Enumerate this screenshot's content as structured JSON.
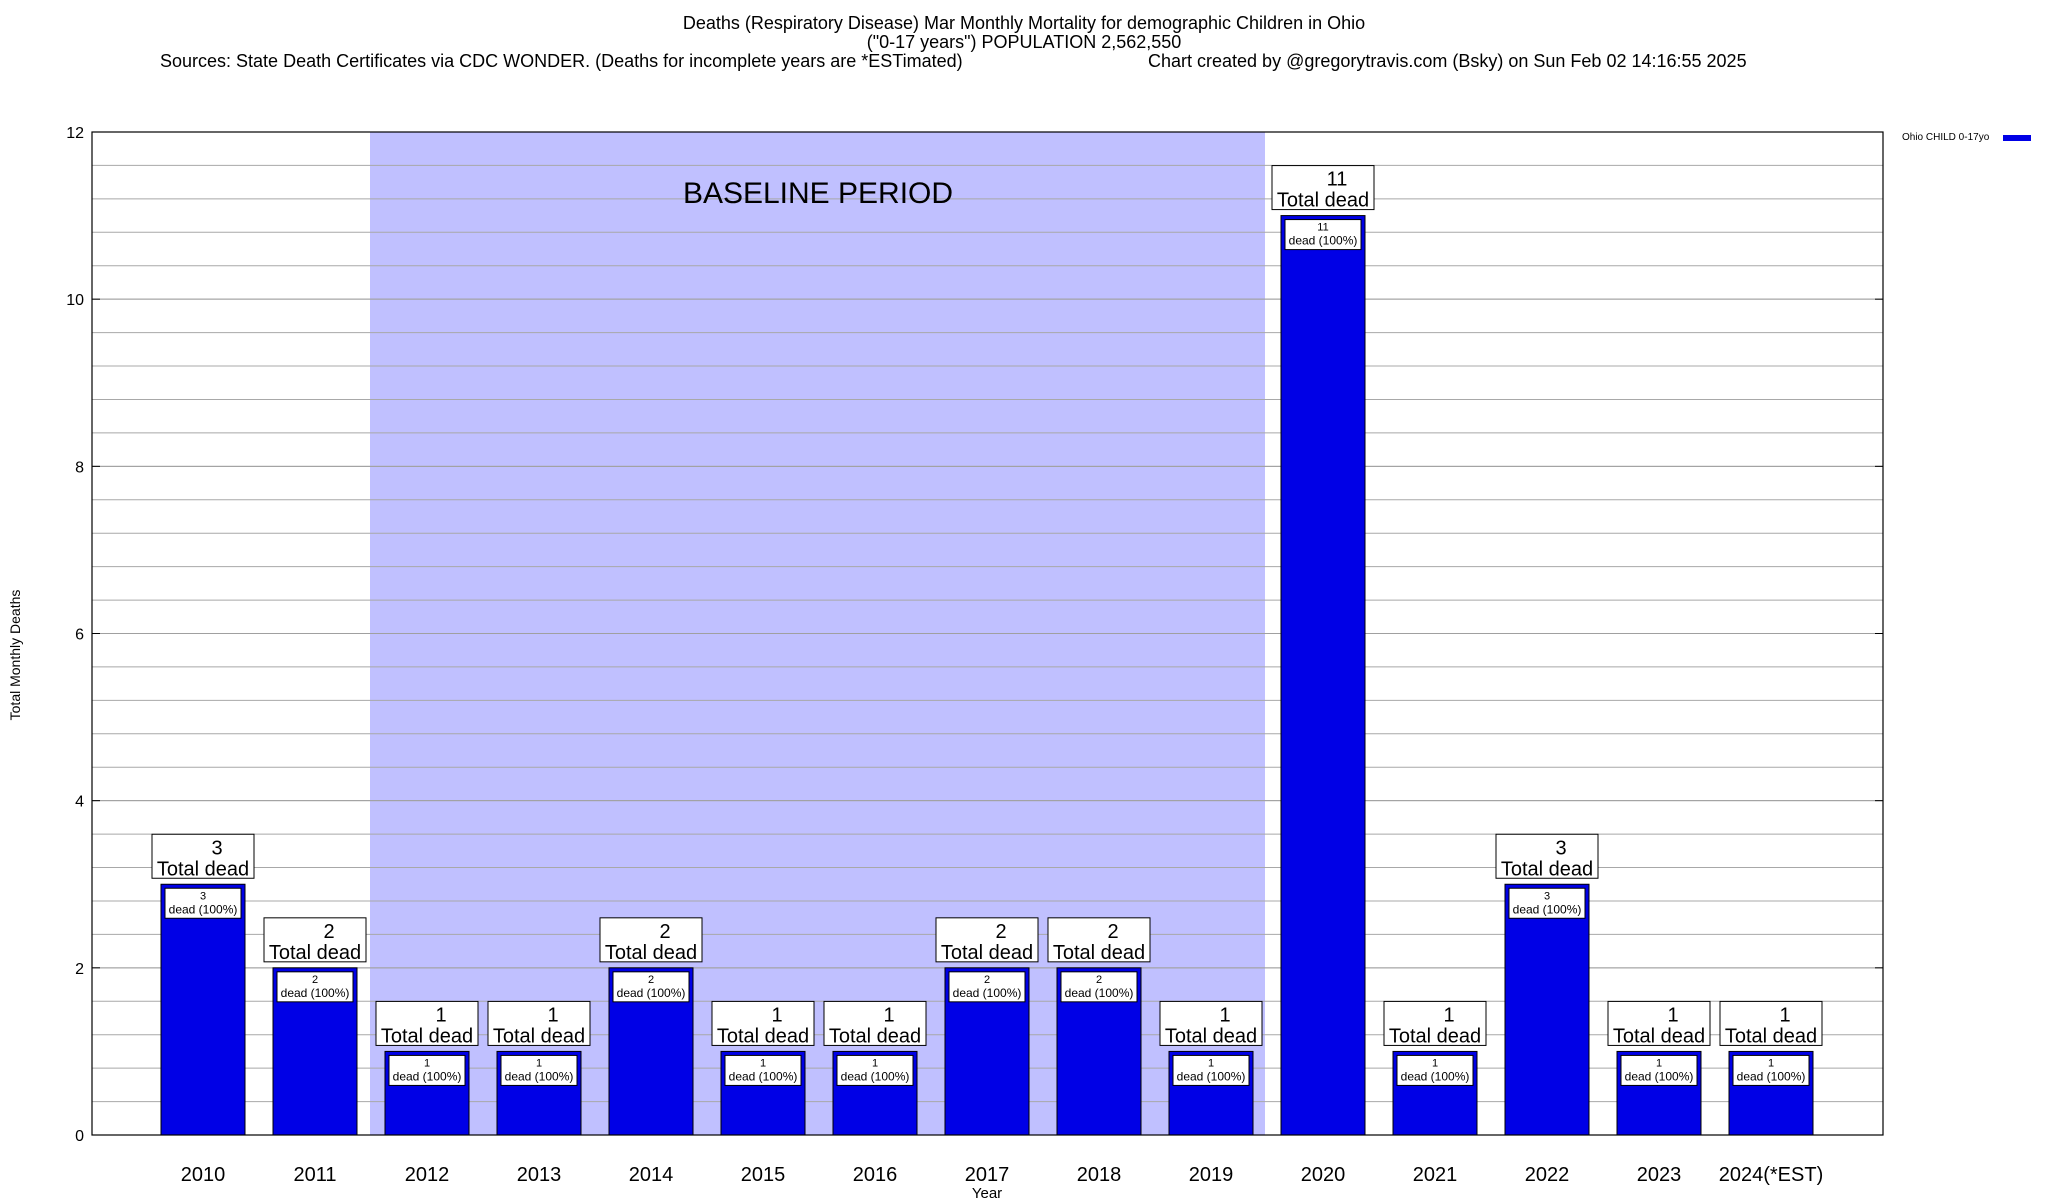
{
  "chart_data": {
    "type": "bar",
    "title_lines": [
      "Deaths (Respiratory Disease) Mar Monthly Mortality for demographic Children in Ohio",
      "(\"0-17 years\") POPULATION 2,562,550",
      "Sources: State Death Certificates via CDC WONDER. (Deaths for incomplete years are *ESTimated)"
    ],
    "credit": "Chart created by @gregorytravis.com (Bsky) on Sun Feb 02 14:16:55 2025",
    "xlabel": "Year",
    "ylabel": "Total Monthly Deaths",
    "ylim": [
      0,
      12
    ],
    "y_ticks": [
      0,
      2,
      4,
      6,
      8,
      10,
      12
    ],
    "y_minor_step": 0.4,
    "grid": true,
    "legend_position": "top-right",
    "series": [
      {
        "name": "Ohio CHILD 0-17yo",
        "color": "#0000e6",
        "values": [
          3,
          2,
          1,
          1,
          2,
          1,
          1,
          2,
          2,
          1,
          11,
          1,
          3,
          1,
          1
        ]
      }
    ],
    "categories": [
      "2010",
      "2011",
      "2012",
      "2013",
      "2014",
      "2015",
      "2016",
      "2017",
      "2018",
      "2019",
      "2020",
      "2021",
      "2022",
      "2023",
      "2024(*EST)"
    ],
    "total_labels": [
      {
        "count": "3",
        "text": "Total dead"
      },
      {
        "count": "2",
        "text": "Total dead"
      },
      {
        "count": "1",
        "text": "Total dead"
      },
      {
        "count": "1",
        "text": "Total dead"
      },
      {
        "count": "2",
        "text": "Total dead"
      },
      {
        "count": "1",
        "text": "Total dead"
      },
      {
        "count": "1",
        "text": "Total dead"
      },
      {
        "count": "2",
        "text": "Total dead"
      },
      {
        "count": "2",
        "text": "Total dead"
      },
      {
        "count": "1",
        "text": "Total dead"
      },
      {
        "count": "11",
        "text": "Total dead"
      },
      {
        "count": "1",
        "text": "Total dead"
      },
      {
        "count": "3",
        "text": "Total dead"
      },
      {
        "count": "1",
        "text": "Total dead"
      },
      {
        "count": "1",
        "text": "Total dead"
      }
    ],
    "segment_labels": [
      {
        "count": "3",
        "text": "dead (100%)"
      },
      {
        "count": "2",
        "text": "dead (100%)"
      },
      {
        "count": "1",
        "text": "dead (100%)"
      },
      {
        "count": "1",
        "text": "dead (100%)"
      },
      {
        "count": "2",
        "text": "dead (100%)"
      },
      {
        "count": "1",
        "text": "dead (100%)"
      },
      {
        "count": "1",
        "text": "dead (100%)"
      },
      {
        "count": "2",
        "text": "dead (100%)"
      },
      {
        "count": "2",
        "text": "dead (100%)"
      },
      {
        "count": "1",
        "text": "dead (100%)"
      },
      {
        "count": "11",
        "text": "dead (100%)"
      },
      {
        "count": "1",
        "text": "dead (100%)"
      },
      {
        "count": "3",
        "text": "dead (100%)"
      },
      {
        "count": "1",
        "text": "dead (100%)"
      },
      {
        "count": "1",
        "text": "dead (100%)"
      }
    ],
    "baseline_period": {
      "label": "BASELINE PERIOD",
      "from": "2012",
      "to": "2019",
      "color": "#c0c0ff"
    }
  }
}
